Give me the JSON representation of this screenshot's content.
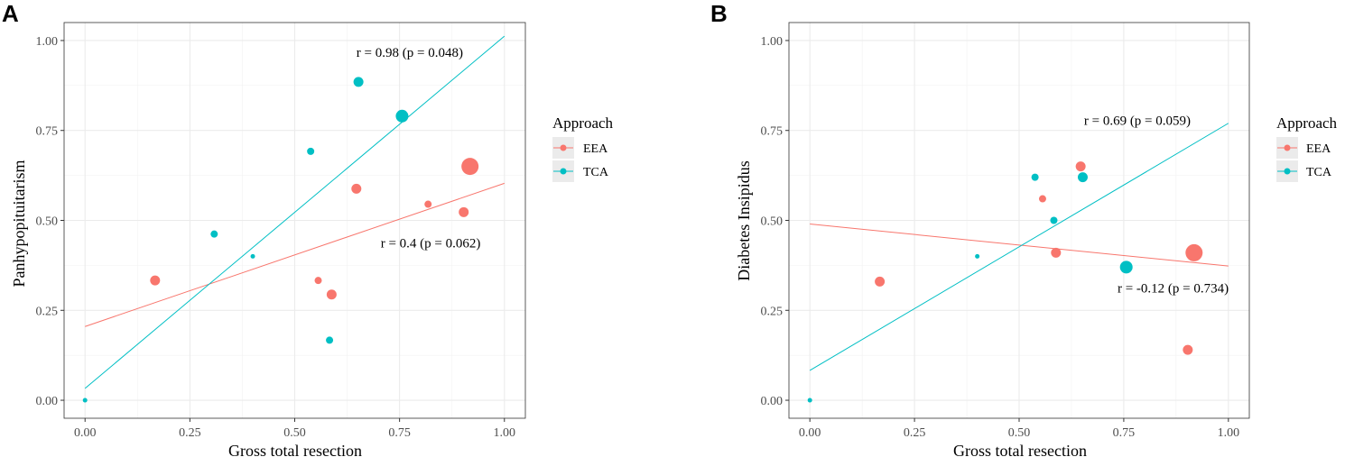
{
  "panels": [
    {
      "letter": "A",
      "chart_data": {
        "type": "scatter",
        "xlabel": "Gross total resection",
        "ylabel": "Panhypopituitarism",
        "xlim": [
          -0.05,
          1.05
        ],
        "ylim": [
          -0.05,
          1.05
        ],
        "x_ticks": [
          0,
          0.25,
          0.5,
          0.75,
          1.0
        ],
        "x_tick_labels": [
          "0.00",
          "0.25",
          "0.50",
          "0.75",
          "1.00"
        ],
        "y_ticks": [
          0,
          0.25,
          0.5,
          0.75,
          1.0
        ],
        "y_tick_labels": [
          "0.00",
          "0.25",
          "0.50",
          "0.75",
          "1.00"
        ],
        "grid": true,
        "legend": {
          "title": "Approach",
          "placement": "right",
          "entries": [
            {
              "label": "EEA",
              "color": "#F8766D"
            },
            {
              "label": "TCA",
              "color": "#00BFC4"
            }
          ]
        },
        "series": [
          {
            "name": "EEA",
            "color": "#F8766D",
            "points": [
              {
                "x": 0.167,
                "y": 0.333,
                "size": 2
              },
              {
                "x": 0.556,
                "y": 0.333,
                "size": 1
              },
              {
                "x": 0.588,
                "y": 0.294,
                "size": 2
              },
              {
                "x": 0.647,
                "y": 0.588,
                "size": 2
              },
              {
                "x": 0.818,
                "y": 0.545,
                "size": 1
              },
              {
                "x": 0.903,
                "y": 0.523,
                "size": 2
              },
              {
                "x": 0.918,
                "y": 0.65,
                "size": 4
              }
            ],
            "fit": {
              "x0": 0,
              "y0": 0.205,
              "x1": 1,
              "y1": 0.603
            }
          },
          {
            "name": "TCA",
            "color": "#00BFC4",
            "points": [
              {
                "x": 0.0,
                "y": 0.0,
                "size": 0
              },
              {
                "x": 0.308,
                "y": 0.462,
                "size": 1
              },
              {
                "x": 0.4,
                "y": 0.4,
                "size": 0
              },
              {
                "x": 0.538,
                "y": 0.692,
                "size": 1
              },
              {
                "x": 0.583,
                "y": 0.167,
                "size": 1
              },
              {
                "x": 0.652,
                "y": 0.885,
                "size": 2
              },
              {
                "x": 0.756,
                "y": 0.79,
                "size": 3
              }
            ],
            "fit": {
              "x0": 0,
              "y0": 0.033,
              "x1": 1,
              "y1": 1.012
            }
          }
        ],
        "annotations": [
          {
            "text": "r = 0.98 (p = 0.048)",
            "x": 0.647,
            "y": 0.955
          },
          {
            "text": "r = 0.4 (p = 0.062)",
            "x": 0.705,
            "y": 0.425
          }
        ]
      }
    },
    {
      "letter": "B",
      "chart_data": {
        "type": "scatter",
        "xlabel": "Gross total resection",
        "ylabel": "Diabetes Insipidus",
        "xlim": [
          -0.05,
          1.05
        ],
        "ylim": [
          -0.05,
          1.05
        ],
        "x_ticks": [
          0,
          0.25,
          0.5,
          0.75,
          1.0
        ],
        "x_tick_labels": [
          "0.00",
          "0.25",
          "0.50",
          "0.75",
          "1.00"
        ],
        "y_ticks": [
          0,
          0.25,
          0.5,
          0.75,
          1.0
        ],
        "y_tick_labels": [
          "0.00",
          "0.25",
          "0.50",
          "0.75",
          "1.00"
        ],
        "grid": true,
        "legend": {
          "title": "Approach",
          "placement": "right",
          "entries": [
            {
              "label": "EEA",
              "color": "#F8766D"
            },
            {
              "label": "TCA",
              "color": "#00BFC4"
            }
          ]
        },
        "series": [
          {
            "name": "EEA",
            "color": "#F8766D",
            "points": [
              {
                "x": 0.167,
                "y": 0.33,
                "size": 2
              },
              {
                "x": 0.556,
                "y": 0.56,
                "size": 1
              },
              {
                "x": 0.588,
                "y": 0.41,
                "size": 2
              },
              {
                "x": 0.647,
                "y": 0.65,
                "size": 2
              },
              {
                "x": 0.903,
                "y": 0.14,
                "size": 2
              },
              {
                "x": 0.918,
                "y": 0.41,
                "size": 4
              }
            ],
            "fit": {
              "x0": 0,
              "y0": 0.49,
              "x1": 1,
              "y1": 0.373
            }
          },
          {
            "name": "TCA",
            "color": "#00BFC4",
            "points": [
              {
                "x": 0.0,
                "y": 0.0,
                "size": 0
              },
              {
                "x": 0.4,
                "y": 0.4,
                "size": 0
              },
              {
                "x": 0.538,
                "y": 0.62,
                "size": 1
              },
              {
                "x": 0.583,
                "y": 0.5,
                "size": 1
              },
              {
                "x": 0.652,
                "y": 0.62,
                "size": 2
              },
              {
                "x": 0.756,
                "y": 0.37,
                "size": 3
              }
            ],
            "fit": {
              "x0": 0,
              "y0": 0.083,
              "x1": 1,
              "y1": 0.77
            }
          }
        ],
        "annotations": [
          {
            "text": "r = 0.69 (p = 0.059)",
            "x": 0.655,
            "y": 0.765
          },
          {
            "text": "r = -0.12 (p = 0.734)",
            "x": 0.735,
            "y": 0.3
          }
        ]
      }
    }
  ]
}
